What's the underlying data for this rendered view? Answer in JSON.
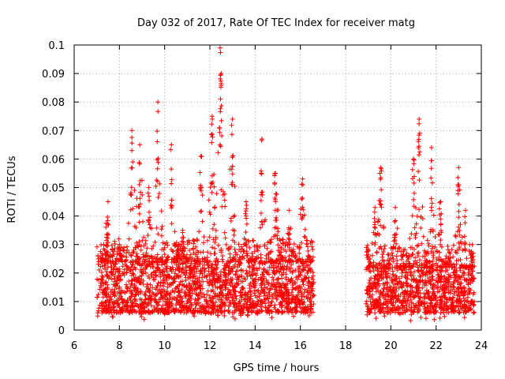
{
  "chart_data": {
    "type": "scatter",
    "title": "Day 032 of 2017, Rate Of TEC Index for receiver matg",
    "xlabel": "GPS time / hours",
    "ylabel": "ROTI / TECUs",
    "xlim": [
      6,
      24
    ],
    "ylim": [
      0,
      0.1
    ],
    "grid": true,
    "marker": "+",
    "colors": {
      "series": "#ff0000",
      "grid": "#a0a0a0",
      "axis": "#000000"
    },
    "x_ticks": [
      {
        "value": 6,
        "label": "6"
      },
      {
        "value": 8,
        "label": "8"
      },
      {
        "value": 10,
        "label": "10"
      },
      {
        "value": 12,
        "label": "12"
      },
      {
        "value": 14,
        "label": "14"
      },
      {
        "value": 16,
        "label": "16"
      },
      {
        "value": 18,
        "label": "18"
      },
      {
        "value": 20,
        "label": "20"
      },
      {
        "value": 22,
        "label": "22"
      },
      {
        "value": 24,
        "label": "24"
      }
    ],
    "y_ticks": [
      {
        "value": 0,
        "label": "0"
      },
      {
        "value": 0.01,
        "label": "0.01"
      },
      {
        "value": 0.02,
        "label": "0.02"
      },
      {
        "value": 0.03,
        "label": "0.03"
      },
      {
        "value": 0.04,
        "label": "0.04"
      },
      {
        "value": 0.05,
        "label": "0.05"
      },
      {
        "value": 0.06,
        "label": "0.06"
      },
      {
        "value": 0.07,
        "label": "0.07"
      },
      {
        "value": 0.08,
        "label": "0.08"
      },
      {
        "value": 0.09,
        "label": "0.09"
      },
      {
        "value": 0.1,
        "label": "0.1"
      }
    ],
    "series": [
      {
        "name": "ROTI",
        "segments": [
          {
            "x_start": 7.0,
            "x_end": 16.6,
            "dense_band": [
              0.006,
              0.024
            ]
          },
          {
            "x_start": 18.9,
            "x_end": 23.7,
            "dense_band": [
              0.006,
              0.022
            ]
          }
        ],
        "peaks": [
          {
            "x": 7.5,
            "y": 0.045
          },
          {
            "x": 8.0,
            "y": 0.03
          },
          {
            "x": 8.55,
            "y": 0.07
          },
          {
            "x": 8.9,
            "y": 0.065
          },
          {
            "x": 9.3,
            "y": 0.05
          },
          {
            "x": 9.7,
            "y": 0.08
          },
          {
            "x": 10.3,
            "y": 0.065
          },
          {
            "x": 10.8,
            "y": 0.035
          },
          {
            "x": 11.6,
            "y": 0.061
          },
          {
            "x": 12.1,
            "y": 0.075
          },
          {
            "x": 12.45,
            "y": 0.099
          },
          {
            "x": 12.5,
            "y": 0.09
          },
          {
            "x": 13.0,
            "y": 0.074
          },
          {
            "x": 13.6,
            "y": 0.045
          },
          {
            "x": 14.3,
            "y": 0.067
          },
          {
            "x": 14.9,
            "y": 0.055
          },
          {
            "x": 15.5,
            "y": 0.042
          },
          {
            "x": 16.1,
            "y": 0.053
          },
          {
            "x": 19.3,
            "y": 0.043
          },
          {
            "x": 19.55,
            "y": 0.057
          },
          {
            "x": 20.2,
            "y": 0.043
          },
          {
            "x": 21.0,
            "y": 0.06
          },
          {
            "x": 21.25,
            "y": 0.074
          },
          {
            "x": 21.8,
            "y": 0.064
          },
          {
            "x": 22.2,
            "y": 0.045
          },
          {
            "x": 23.0,
            "y": 0.057
          },
          {
            "x": 23.3,
            "y": 0.042
          },
          {
            "x": 23.6,
            "y": 0.03
          }
        ]
      }
    ]
  }
}
